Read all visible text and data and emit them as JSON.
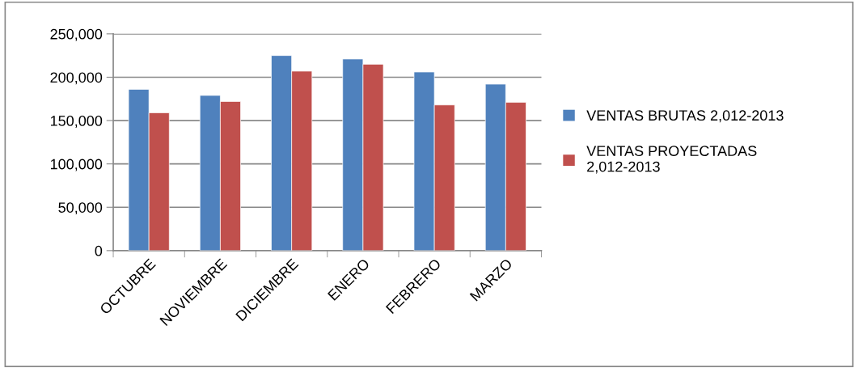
{
  "chart_data": {
    "type": "bar",
    "categories": [
      "OCTUBRE",
      "NOVIEMBRE",
      "DICIEMBRE",
      "ENERO",
      "FEBRERO",
      "MARZO"
    ],
    "series": [
      {
        "name": "VENTAS BRUTAS 2,012-2013",
        "color": "#4f81bd",
        "values": [
          186000,
          179000,
          225000,
          221000,
          206000,
          192000
        ]
      },
      {
        "name": "VENTAS PROYECTADAS 2,012-2013",
        "color": "#c0504d",
        "values": [
          159000,
          172000,
          207000,
          215000,
          168000,
          171000
        ]
      }
    ],
    "ylim": [
      0,
      250000
    ],
    "yticks": [
      0,
      {
        "value": 50000,
        "label": "50,000"
      },
      {
        "value": 100000,
        "label": "100,000"
      },
      {
        "value": 150000,
        "label": "150,000"
      },
      {
        "value": 200000,
        "label": "200,000"
      },
      {
        "value": 250000,
        "label": "250,000"
      }
    ],
    "grid": "y",
    "legend": "right"
  }
}
